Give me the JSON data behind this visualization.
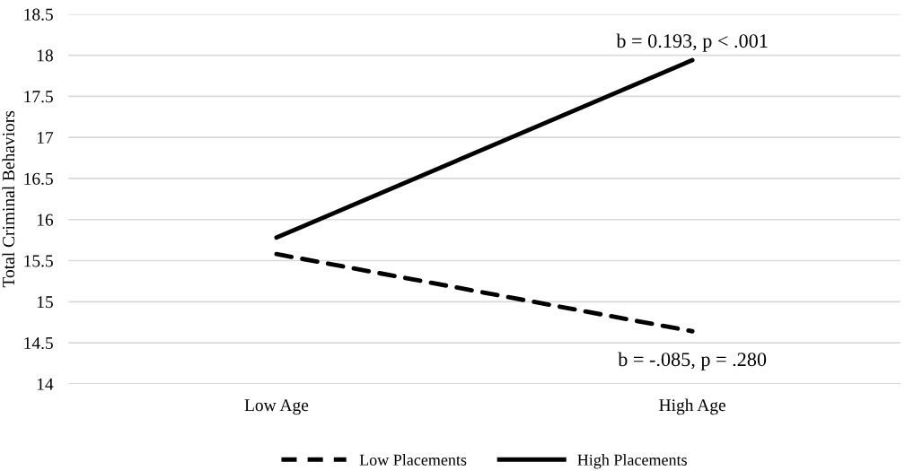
{
  "chart_data": {
    "type": "line",
    "ylabel": "Total Criminal Behaviors",
    "categories": [
      "Low Age",
      "High Age"
    ],
    "series": [
      {
        "name": "Low Placements",
        "color": "#000000",
        "values": [
          15.58,
          14.64
        ],
        "line_style": "dashed"
      },
      {
        "name": "High Placements",
        "color": "#000000",
        "values": [
          15.78,
          17.94
        ],
        "line_style": "solid"
      }
    ],
    "annotations": [
      {
        "text": "b = 0.193, p < .001",
        "x": "High Age",
        "y": 17.94
      },
      {
        "text": "b = -.085, p = .280",
        "x": "High Age",
        "y": 14.64
      }
    ],
    "ylim": [
      14,
      18.5
    ],
    "yticks": [
      14,
      14.5,
      15,
      15.5,
      16,
      16.5,
      17,
      17.5,
      18,
      18.5
    ],
    "grid": "y",
    "legend": "bottom",
    "marker": "none"
  }
}
